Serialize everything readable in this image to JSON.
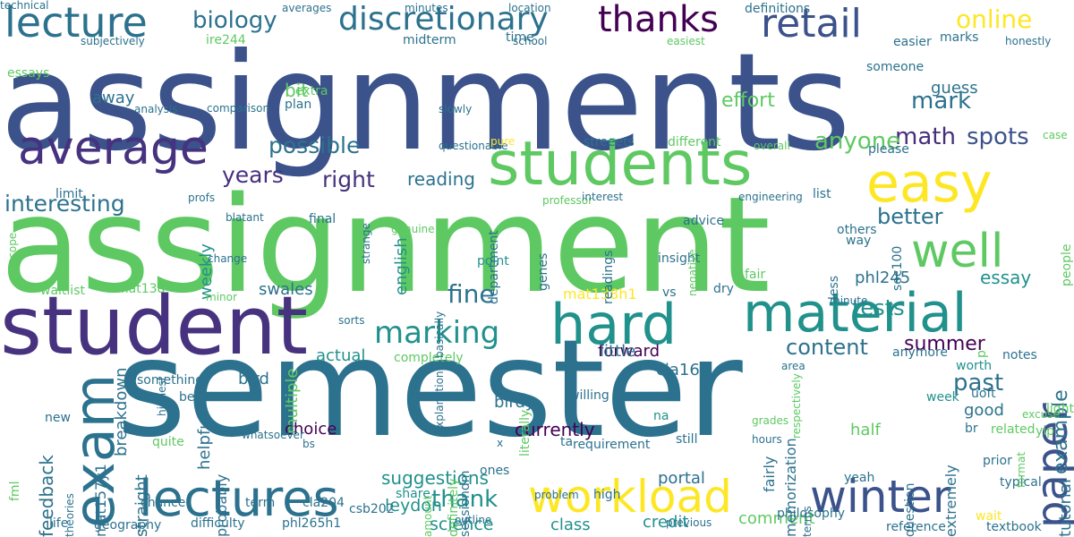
{
  "words": [
    {
      "text": "assignments",
      "color": "#3b528b"
    },
    {
      "text": "assignment",
      "color": "#5ec962"
    },
    {
      "text": "semester",
      "color": "#2c728e"
    },
    {
      "text": "student",
      "color": "#46327e"
    },
    {
      "text": "students",
      "color": "#5ec962"
    },
    {
      "text": "material",
      "color": "#21918c"
    },
    {
      "text": "hard",
      "color": "#21918c"
    },
    {
      "text": "workload",
      "color": "#fde725"
    },
    {
      "text": "winter",
      "color": "#3b528b"
    },
    {
      "text": "lectures",
      "color": "#2c728e"
    },
    {
      "text": "exam",
      "color": "#2c728e"
    },
    {
      "text": "average",
      "color": "#46327e"
    },
    {
      "text": "lecture",
      "color": "#2c728e"
    },
    {
      "text": "easy",
      "color": "#fde725"
    },
    {
      "text": "well",
      "color": "#5ec962"
    },
    {
      "text": "retail",
      "color": "#3b528b"
    },
    {
      "text": "thanks",
      "color": "#440154"
    },
    {
      "text": "discretionary",
      "color": "#2c728e"
    },
    {
      "text": "marking",
      "color": "#21918c"
    },
    {
      "text": "paper",
      "color": "#3b528b"
    },
    {
      "text": "online",
      "color": "#fde725"
    },
    {
      "text": "biology",
      "color": "#2c728e"
    },
    {
      "text": "math",
      "color": "#472d7b"
    },
    {
      "text": "anyone",
      "color": "#5ec962"
    },
    {
      "text": "spots",
      "color": "#3b528b"
    },
    {
      "text": "mark",
      "color": "#2c728e"
    },
    {
      "text": "interesting",
      "color": "#2c728e"
    },
    {
      "text": "possible",
      "color": "#2c728e"
    },
    {
      "text": "years",
      "color": "#46327e"
    },
    {
      "text": "right",
      "color": "#46327e"
    },
    {
      "text": "fine",
      "color": "#2c728e"
    },
    {
      "text": "thank",
      "color": "#21918c"
    },
    {
      "text": "tests",
      "color": "#21918c"
    },
    {
      "text": "better",
      "color": "#2c728e"
    },
    {
      "text": "content",
      "color": "#2c728e"
    },
    {
      "text": "summer",
      "color": "#440154"
    },
    {
      "text": "past",
      "color": "#2c728e"
    },
    {
      "text": "effort",
      "color": "#5ec962"
    },
    {
      "text": "essay",
      "color": "#21918c"
    },
    {
      "text": "example",
      "color": "#2c728e"
    },
    {
      "text": "feedback",
      "color": "#2c728e"
    },
    {
      "text": "suggestions",
      "color": "#21918c"
    },
    {
      "text": "science",
      "color": "#21918c"
    },
    {
      "text": "leydon",
      "color": "#21918c"
    },
    {
      "text": "reading",
      "color": "#2c728e"
    },
    {
      "text": "bit",
      "color": "#5ec962"
    },
    {
      "text": "english",
      "color": "#21918c"
    },
    {
      "text": "breakdown",
      "color": "#2c728e"
    },
    {
      "text": "multiple",
      "color": "#5ec962"
    },
    {
      "text": "helpful",
      "color": "#2c728e"
    },
    {
      "text": "straight",
      "color": "#2c728e"
    },
    {
      "text": "currently",
      "color": "#440154"
    },
    {
      "text": "choice",
      "color": "#440154"
    },
    {
      "text": "forward",
      "color": "#440154"
    },
    {
      "text": "little",
      "color": "#2c728e"
    },
    {
      "text": "actual",
      "color": "#21918c"
    },
    {
      "text": "bird",
      "color": "#2c728e"
    },
    {
      "text": "birdy",
      "color": "#2c728e"
    },
    {
      "text": "cla160",
      "color": "#2c728e"
    },
    {
      "text": "swales",
      "color": "#2c728e"
    },
    {
      "text": "phl245",
      "color": "#2c728e"
    },
    {
      "text": "guess",
      "color": "#2c728e"
    },
    {
      "text": "weekly",
      "color": "#21918c"
    },
    {
      "text": "away",
      "color": "#2c728e"
    },
    {
      "text": "half",
      "color": "#5ec962"
    },
    {
      "text": "good",
      "color": "#2c728e"
    },
    {
      "text": "tutorial",
      "color": "#2c728e"
    },
    {
      "text": "class",
      "color": "#21918c"
    },
    {
      "text": "credit",
      "color": "#21918c"
    },
    {
      "text": "comment",
      "color": "#5ec962"
    },
    {
      "text": "portal",
      "color": "#2c728e"
    },
    {
      "text": "mat138h1",
      "color": "#fde725"
    },
    {
      "text": "mat157y1",
      "color": "#2c728e"
    },
    {
      "text": "memorization",
      "color": "#2c728e"
    },
    {
      "text": "extremely",
      "color": "#2c728e"
    },
    {
      "text": "probably",
      "color": "#2c728e"
    },
    {
      "text": "fairly",
      "color": "#2c728e"
    },
    {
      "text": "fair",
      "color": "#5ec962"
    },
    {
      "text": "different",
      "color": "#5ec962"
    },
    {
      "text": "streeets",
      "color": "#2c728e"
    },
    {
      "text": "advice",
      "color": "#2c728e"
    },
    {
      "text": "list",
      "color": "#2c728e"
    },
    {
      "text": "br",
      "color": "#2c728e"
    },
    {
      "text": "related",
      "color": "#5ec962"
    },
    {
      "text": "notes",
      "color": "#2c728e"
    },
    {
      "text": "worth",
      "color": "#21918c"
    },
    {
      "text": "week",
      "color": "#21918c"
    },
    {
      "text": "yeah",
      "color": "#2c728e"
    },
    {
      "text": "reference",
      "color": "#2c728e"
    },
    {
      "text": "textbook",
      "color": "#2c728e"
    },
    {
      "text": "geography",
      "color": "#2c728e"
    },
    {
      "text": "difficulty",
      "color": "#2c728e"
    },
    {
      "text": "phl265h1",
      "color": "#2c728e"
    },
    {
      "text": "life",
      "color": "#2c728e"
    },
    {
      "text": "share",
      "color": "#21918c"
    },
    {
      "text": "cla204",
      "color": "#2c728e"
    },
    {
      "text": "term",
      "color": "#2c728e"
    },
    {
      "text": "chance",
      "color": "#2c728e"
    },
    {
      "text": "quite",
      "color": "#5ec962"
    },
    {
      "text": "best",
      "color": "#2c728e"
    },
    {
      "text": "something",
      "color": "#2c728e"
    },
    {
      "text": "completely",
      "color": "#5ec962"
    },
    {
      "text": "lot",
      "color": "#2c728e"
    },
    {
      "text": "na",
      "color": "#21918c"
    },
    {
      "text": "still",
      "color": "#2c728e"
    },
    {
      "text": "high",
      "color": "#2c728e"
    },
    {
      "text": "ta",
      "color": "#2c728e"
    },
    {
      "text": "ones",
      "color": "#2c728e"
    },
    {
      "text": "csb202",
      "color": "#2c728e"
    },
    {
      "text": "vs",
      "color": "#2c728e"
    },
    {
      "text": "dry",
      "color": "#2c728e"
    },
    {
      "text": "insight",
      "color": "#2c728e"
    },
    {
      "text": "point",
      "color": "#21918c"
    },
    {
      "text": "way",
      "color": "#2c728e"
    },
    {
      "text": "mat138",
      "color": "#5ec962"
    },
    {
      "text": "waitlist",
      "color": "#5ec962"
    },
    {
      "text": "limit",
      "color": "#2c728e"
    },
    {
      "text": "final",
      "color": "#2c728e"
    },
    {
      "text": "extra",
      "color": "#5ec962"
    },
    {
      "text": "plan",
      "color": "#2c728e"
    },
    {
      "text": "essays",
      "color": "#5ec962"
    },
    {
      "text": "ire244",
      "color": "#5ec962"
    },
    {
      "text": "midterm",
      "color": "#2c728e"
    },
    {
      "text": "time",
      "color": "#2c728e"
    },
    {
      "text": "easier",
      "color": "#2c728e"
    },
    {
      "text": "marks",
      "color": "#2c728e"
    },
    {
      "text": "someone",
      "color": "#2c728e"
    },
    {
      "text": "less",
      "color": "#2c728e"
    },
    {
      "text": "please",
      "color": "#2c728e"
    },
    {
      "text": "soc100",
      "color": "#2c728e"
    },
    {
      "text": "people",
      "color": "#5ec962"
    },
    {
      "text": "others",
      "color": "#2c728e"
    },
    {
      "text": "genes",
      "color": "#2c728e"
    },
    {
      "text": "readings",
      "color": "#2c728e"
    },
    {
      "text": "department",
      "color": "#2c728e"
    },
    {
      "text": "literally",
      "color": "#5ec962"
    },
    {
      "text": "sessiondm",
      "color": "#2c728e"
    },
    {
      "text": "definitely",
      "color": "#5ec962"
    },
    {
      "text": "willing",
      "color": "#2c728e"
    },
    {
      "text": "new",
      "color": "#2c728e"
    },
    {
      "text": "fml",
      "color": "#5ec962"
    },
    {
      "text": "philosophy",
      "color": "#2c728e"
    },
    {
      "text": "wait",
      "color": "#fde725"
    },
    {
      "text": "light",
      "color": "#5ec962"
    },
    {
      "text": "p",
      "color": "#5ec962"
    },
    {
      "text": "anymore",
      "color": "#2c728e"
    },
    {
      "text": "yip",
      "color": "#5ec962"
    },
    {
      "text": "uoft",
      "color": "#2c728e"
    },
    {
      "text": "prior",
      "color": "#2c728e"
    },
    {
      "text": "typical",
      "color": "#2c728e"
    },
    {
      "text": "question",
      "color": "#2c728e"
    },
    {
      "text": "requirement",
      "color": "#2c728e"
    },
    {
      "text": "hours",
      "color": "#2c728e"
    },
    {
      "text": "grades",
      "color": "#5ec962"
    },
    {
      "text": "terms",
      "color": "#2c728e"
    },
    {
      "text": "area",
      "color": "#2c728e"
    },
    {
      "text": "previous",
      "color": "#2c728e"
    },
    {
      "text": "outline",
      "color": "#2c728e"
    },
    {
      "text": "problem",
      "color": "#2c728e"
    },
    {
      "text": "amount",
      "color": "#5ec962"
    },
    {
      "text": "explanation",
      "color": "#2c728e"
    },
    {
      "text": "genuine",
      "color": "#5ec962"
    },
    {
      "text": "bs",
      "color": "#2c728e"
    },
    {
      "text": "theories",
      "color": "#2c728e"
    },
    {
      "text": "whatsoever",
      "color": "#2c728e"
    },
    {
      "text": "x",
      "color": "#2c728e"
    },
    {
      "text": "sorts",
      "color": "#2c728e"
    },
    {
      "text": "minor",
      "color": "#5ec962"
    },
    {
      "text": "change",
      "color": "#2c728e"
    },
    {
      "text": "blatant",
      "color": "#2c728e"
    },
    {
      "text": "highest",
      "color": "#2c728e"
    },
    {
      "text": "profs",
      "color": "#2c728e"
    },
    {
      "text": "basically",
      "color": "#2c728e"
    },
    {
      "text": "professor",
      "color": "#5ec962"
    },
    {
      "text": "interest",
      "color": "#2c728e"
    },
    {
      "text": "engineering",
      "color": "#2c728e"
    },
    {
      "text": "respectively",
      "color": "#5ec962"
    },
    {
      "text": "minute",
      "color": "#2c728e"
    },
    {
      "text": "format",
      "color": "#5ec962"
    },
    {
      "text": "case",
      "color": "#5ec962"
    },
    {
      "text": "excuse",
      "color": "#5ec962"
    },
    {
      "text": "overall",
      "color": "#5ec962"
    },
    {
      "text": "negative",
      "color": "#5ec962"
    },
    {
      "text": "questionable",
      "color": "#2c728e"
    },
    {
      "text": "pure",
      "color": "#fde725"
    },
    {
      "text": "slowly",
      "color": "#2c728e"
    },
    {
      "text": "strange",
      "color": "#2c728e"
    },
    {
      "text": "comparison",
      "color": "#2c728e"
    },
    {
      "text": "analysis",
      "color": "#2c728e"
    },
    {
      "text": "scope",
      "color": "#5ec962"
    },
    {
      "text": "subjectively",
      "color": "#2c728e"
    },
    {
      "text": "averages",
      "color": "#2c728e"
    },
    {
      "text": "minutes",
      "color": "#2c728e"
    },
    {
      "text": "location",
      "color": "#2c728e"
    },
    {
      "text": "definitions",
      "color": "#2c728e"
    },
    {
      "text": "school",
      "color": "#2c728e"
    },
    {
      "text": "easiest",
      "color": "#5ec962"
    },
    {
      "text": "honestly",
      "color": "#2c728e"
    },
    {
      "text": "technical",
      "color": "#2c728e"
    }
  ]
}
